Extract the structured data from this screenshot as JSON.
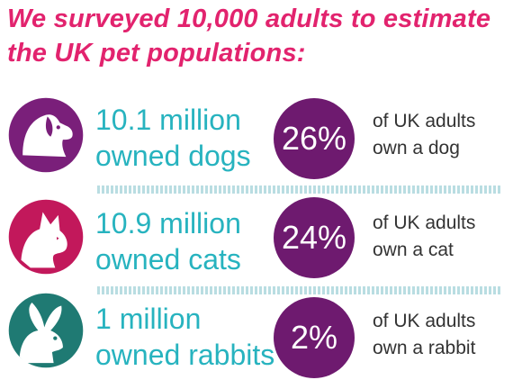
{
  "headline": {
    "line1": "We surveyed 10,000 adults to estimate",
    "line2": "the UK pet populations:"
  },
  "rows": [
    {
      "count_line1": "10.1 million",
      "count_line2": "owned dogs",
      "percent": "26%",
      "desc_line1": "of UK adults",
      "desc_line2": "own a dog",
      "icon": "dog-icon",
      "icon_color": "#7a1f7a"
    },
    {
      "count_line1": "10.9 million",
      "count_line2": "owned cats",
      "percent": "24%",
      "desc_line1": "of UK adults",
      "desc_line2": "own a cat",
      "icon": "cat-icon",
      "icon_color": "#c2185b"
    },
    {
      "count_line1": "1 million",
      "count_line2": "owned rabbits",
      "percent": "2%",
      "desc_line1": "of UK adults",
      "desc_line2": "own a rabbit",
      "icon": "rabbit-icon",
      "icon_color": "#1f7a73"
    }
  ],
  "colors": {
    "headline": "#e2236e",
    "count_text": "#27b3bf",
    "percent_circle": "#6e1a6f",
    "divider": "#b9dde2"
  }
}
